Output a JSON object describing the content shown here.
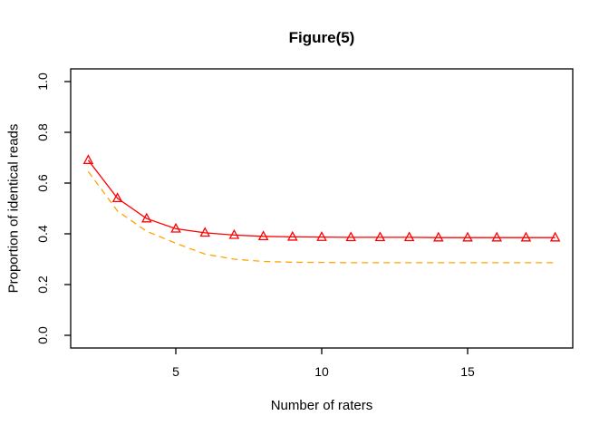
{
  "chart_data": {
    "type": "line",
    "title": "Figure(5)",
    "xlabel": "Number of raters",
    "ylabel": "Proportion of identical reads",
    "xlim": [
      2,
      18
    ],
    "ylim": [
      0.0,
      1.0
    ],
    "grid": false,
    "legend": "none",
    "background": "#ffffff",
    "axis_color": "#000000",
    "x_ticks": [
      {
        "v": 5,
        "label": "5"
      },
      {
        "v": 10,
        "label": "10"
      },
      {
        "v": 15,
        "label": "15"
      }
    ],
    "y_ticks": [
      {
        "v": 0.0,
        "label": "0.0"
      },
      {
        "v": 0.2,
        "label": "0.2"
      },
      {
        "v": 0.4,
        "label": "0.4"
      },
      {
        "v": 0.6,
        "label": "0.6"
      },
      {
        "v": 0.8,
        "label": "0.8"
      },
      {
        "v": 1.0,
        "label": "1.0"
      }
    ],
    "series": [
      {
        "name": "red-solid-triangle-series",
        "color": "#ff0000",
        "style": "solid",
        "marker": "open-triangle",
        "x": [
          2,
          3,
          4,
          5,
          6,
          7,
          8,
          9,
          10,
          11,
          12,
          13,
          14,
          15,
          16,
          17,
          18
        ],
        "y": [
          0.69,
          0.54,
          0.46,
          0.42,
          0.404,
          0.395,
          0.39,
          0.388,
          0.387,
          0.386,
          0.386,
          0.386,
          0.385,
          0.385,
          0.385,
          0.385,
          0.385
        ]
      },
      {
        "name": "orange-dashed-series",
        "color": "#ffa500",
        "style": "dashed",
        "marker": "none",
        "x": [
          2,
          3,
          4,
          5,
          6,
          7,
          8,
          9,
          10,
          11,
          12,
          13,
          14,
          15,
          16,
          17,
          18
        ],
        "y": [
          0.645,
          0.49,
          0.41,
          0.363,
          0.32,
          0.3,
          0.291,
          0.288,
          0.287,
          0.286,
          0.286,
          0.286,
          0.286,
          0.286,
          0.286,
          0.286,
          0.286
        ]
      }
    ]
  }
}
